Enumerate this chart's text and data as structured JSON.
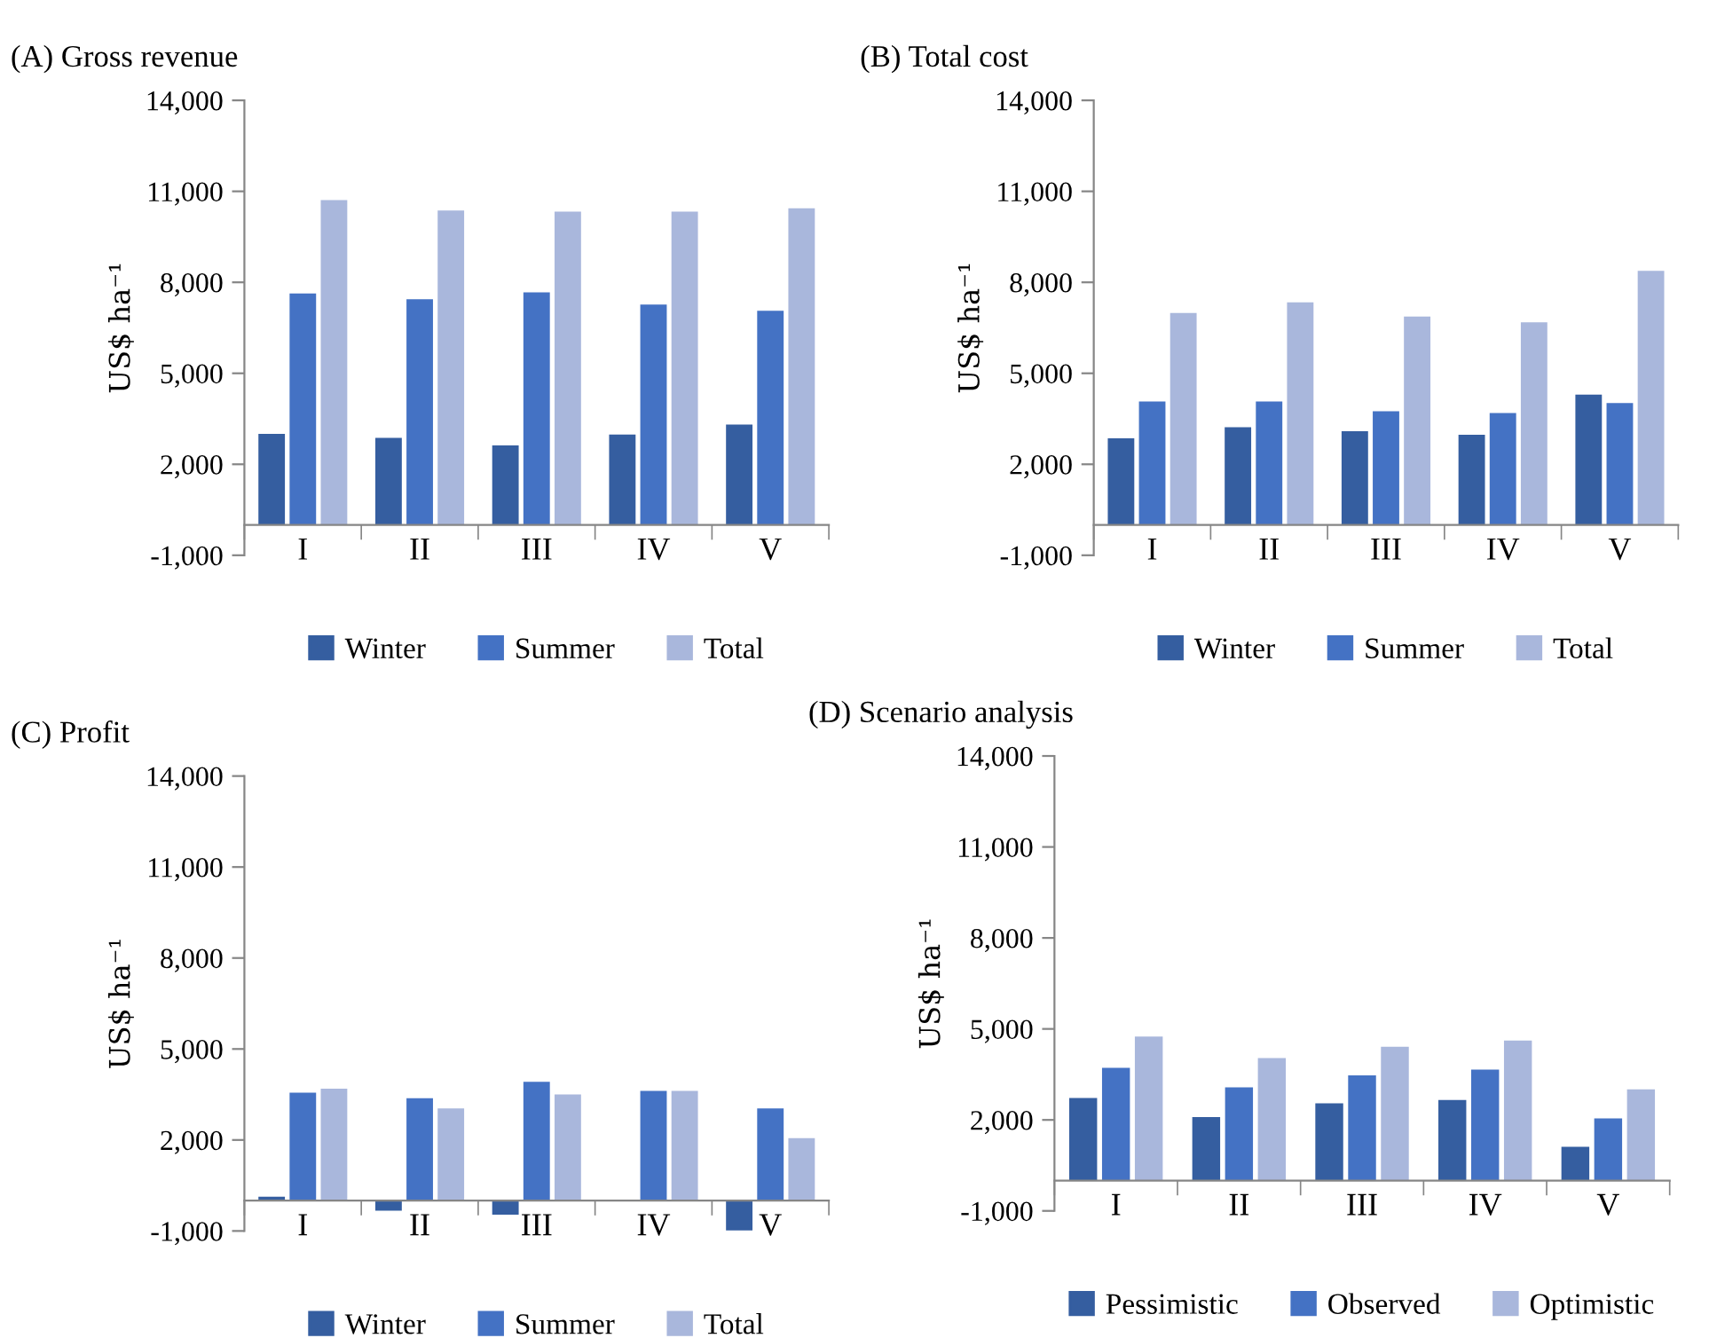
{
  "chart_data": [
    {
      "type": "bar",
      "title": "(A) Gross revenue",
      "ylabel": "US$ ha⁻¹",
      "categories": [
        "I",
        "II",
        "III",
        "IV",
        "V"
      ],
      "ylim": [
        -1000,
        14000
      ],
      "yticks": [
        {
          "value": -1000,
          "label": "-1,000"
        },
        {
          "value": 2000,
          "label": "2,000"
        },
        {
          "value": 5000,
          "label": "5,000"
        },
        {
          "value": 8000,
          "label": "8,000"
        },
        {
          "value": 11000,
          "label": "11,000"
        },
        {
          "value": 14000,
          "label": "14,000"
        }
      ],
      "legend": "bottom",
      "grid": false,
      "series": [
        {
          "name": "Winter",
          "color": "#355ea0",
          "values": [
            3000,
            2870,
            2620,
            2980,
            3310
          ]
        },
        {
          "name": "Summer",
          "color": "#4472c4",
          "values": [
            7630,
            7440,
            7670,
            7270,
            7060
          ]
        },
        {
          "name": "Total",
          "color": "#a9b7dc",
          "values": [
            10710,
            10370,
            10330,
            10330,
            10440
          ]
        }
      ]
    },
    {
      "type": "bar",
      "title": "(B) Total cost",
      "ylabel": "US$ ha⁻¹",
      "categories": [
        "I",
        "II",
        "III",
        "IV",
        "V"
      ],
      "ylim": [
        -1000,
        14000
      ],
      "yticks": [
        {
          "value": -1000,
          "label": "-1,000"
        },
        {
          "value": 2000,
          "label": "2,000"
        },
        {
          "value": 5000,
          "label": "5,000"
        },
        {
          "value": 8000,
          "label": "8,000"
        },
        {
          "value": 11000,
          "label": "11,000"
        },
        {
          "value": 14000,
          "label": "14,000"
        }
      ],
      "legend": "bottom",
      "grid": false,
      "series": [
        {
          "name": "Winter",
          "color": "#355ea0",
          "values": [
            2860,
            3220,
            3090,
            2970,
            4300
          ]
        },
        {
          "name": "Summer",
          "color": "#4472c4",
          "values": [
            4070,
            4070,
            3750,
            3690,
            4020
          ]
        },
        {
          "name": "Total",
          "color": "#a9b7dc",
          "values": [
            6990,
            7340,
            6870,
            6680,
            8380
          ]
        }
      ]
    },
    {
      "type": "bar",
      "title": "(C) Profit",
      "ylabel": "US$ ha⁻¹",
      "categories": [
        "I",
        "II",
        "III",
        "IV",
        "V"
      ],
      "ylim": [
        -1000,
        14000
      ],
      "yticks": [
        {
          "value": -1000,
          "label": "-1,000"
        },
        {
          "value": 2000,
          "label": "2,000"
        },
        {
          "value": 5000,
          "label": "5,000"
        },
        {
          "value": 8000,
          "label": "8,000"
        },
        {
          "value": 11000,
          "label": "11,000"
        },
        {
          "value": 14000,
          "label": "14,000"
        }
      ],
      "legend": "bottom",
      "grid": false,
      "series": [
        {
          "name": "Winter",
          "color": "#355ea0",
          "values": [
            130,
            -330,
            -460,
            0,
            -980
          ]
        },
        {
          "name": "Summer",
          "color": "#4472c4",
          "values": [
            3560,
            3380,
            3920,
            3620,
            3040
          ]
        },
        {
          "name": "Total",
          "color": "#a9b7dc",
          "values": [
            3690,
            3040,
            3500,
            3620,
            2060
          ]
        }
      ]
    },
    {
      "type": "bar",
      "title": "(D) Scenario analysis",
      "ylabel": "US$ ha⁻¹",
      "categories": [
        "I",
        "II",
        "III",
        "IV",
        "V"
      ],
      "ylim": [
        -1000,
        14000
      ],
      "yticks": [
        {
          "value": -1000,
          "label": "-1,000"
        },
        {
          "value": 2000,
          "label": "2,000"
        },
        {
          "value": 5000,
          "label": "5,000"
        },
        {
          "value": 8000,
          "label": "8,000"
        },
        {
          "value": 11000,
          "label": "11,000"
        },
        {
          "value": 14000,
          "label": "14,000"
        }
      ],
      "legend": "bottom",
      "grid": false,
      "series": [
        {
          "name": "Pessimistic",
          "color": "#355ea0",
          "values": [
            2720,
            2090,
            2550,
            2660,
            1110
          ]
        },
        {
          "name": "Observed",
          "color": "#4472c4",
          "values": [
            3720,
            3070,
            3470,
            3660,
            2050
          ]
        },
        {
          "name": "Optimistic",
          "color": "#a9b7dc",
          "values": [
            4750,
            4040,
            4410,
            4620,
            3010
          ]
        }
      ]
    }
  ]
}
